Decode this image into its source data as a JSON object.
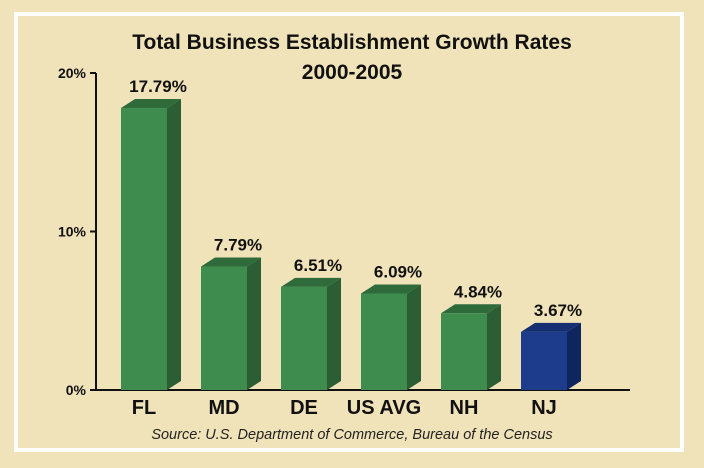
{
  "chart_data": {
    "type": "bar",
    "title": "Total Business Establishment Growth Rates",
    "subtitle": "2000-2005",
    "categories": [
      "FL",
      "MD",
      "DE",
      "US AVG",
      "NH",
      "NJ"
    ],
    "values": [
      17.79,
      7.79,
      6.51,
      6.09,
      4.84,
      3.67
    ],
    "value_labels": [
      "17.79%",
      "7.79%",
      "6.51%",
      "6.09%",
      "4.84%",
      "3.67%"
    ],
    "ylim": [
      0,
      20
    ],
    "yticks": [
      {
        "value": 0,
        "label": "0%"
      },
      {
        "value": 10,
        "label": "10%"
      },
      {
        "value": 20,
        "label": "20%"
      }
    ],
    "xlabel": "",
    "ylabel": "",
    "grid": false,
    "bar_colors": [
      "#3f8c4f",
      "#3f8c4f",
      "#3f8c4f",
      "#3f8c4f",
      "#3f8c4f",
      "#1d3d8c"
    ],
    "bar_side_colors": [
      "#2b5e34",
      "#2b5e34",
      "#2b5e34",
      "#2b5e34",
      "#2b5e34",
      "#0f2560"
    ],
    "bar_top_colors": [
      "#2f6b3a",
      "#2f6b3a",
      "#2f6b3a",
      "#2f6b3a",
      "#2f6b3a",
      "#152f70"
    ],
    "source": "Source: U.S. Department of Commerce, Bureau of the Census"
  }
}
